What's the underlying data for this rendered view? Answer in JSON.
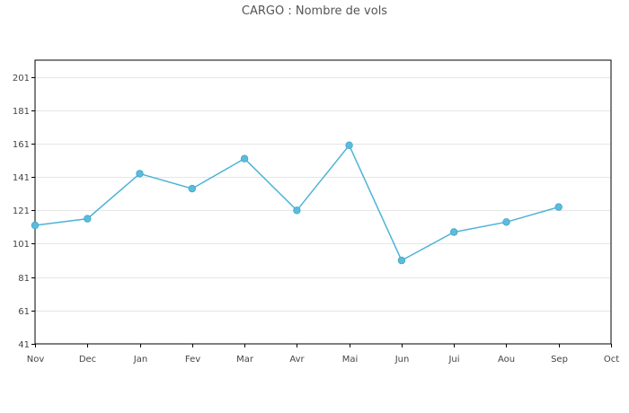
{
  "chart_data": {
    "type": "line",
    "title": "CARGO : Nombre de vols",
    "xlabel": "",
    "ylabel": "",
    "categories": [
      "Nov",
      "Dec",
      "Jan",
      "Fev",
      "Mar",
      "Avr",
      "Mai",
      "Jun",
      "Jui",
      "Aou",
      "Sep",
      "Oct"
    ],
    "series": [
      {
        "values": [
          112,
          116,
          143,
          134,
          152,
          121,
          160,
          91,
          108,
          114,
          123,
          null
        ]
      }
    ],
    "ylim": [
      41,
      211
    ],
    "yticks": [
      41,
      61,
      81,
      101,
      121,
      141,
      161,
      181,
      201
    ],
    "grid": true,
    "colors": {
      "line": "#4db3d6",
      "marker": "#5bbcdc",
      "grid": "#e6e6e6",
      "axis": "#000000"
    }
  }
}
